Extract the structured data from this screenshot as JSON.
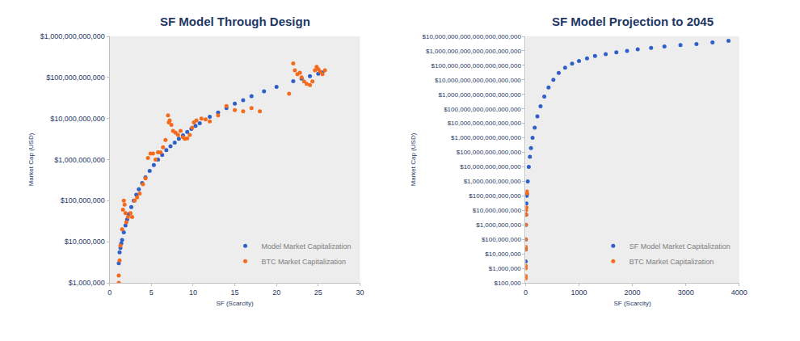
{
  "chart_data": [
    {
      "type": "scatter",
      "title": "SF Model Through Design",
      "x_label": "SF (Scarcity)",
      "y_label": "Market Cap (USD)",
      "log": "y",
      "grid": false,
      "legend": "lower right",
      "xlim": [
        0,
        30
      ],
      "xticks": [
        0,
        5,
        10,
        15,
        20,
        25,
        30
      ],
      "ylim": [
        1000000.0,
        1000000000000.0
      ],
      "yticks": [
        {
          "value": 1000000.0,
          "label": "$1,000,000"
        },
        {
          "value": 10000000.0,
          "label": "$10,000,000"
        },
        {
          "value": 100000000.0,
          "label": "$100,000,000"
        },
        {
          "value": 1000000000.0,
          "label": "$1,000,000,000"
        },
        {
          "value": 10000000000.0,
          "label": "$10,000,000,000"
        },
        {
          "value": 100000000000.0,
          "label": "$100,000,000,000"
        },
        {
          "value": 1000000000000.0,
          "label": "$1,000,000,000,000"
        }
      ],
      "series": [
        {
          "name": "Model Market Capitalization",
          "color": "#2f5fc9",
          "marker": "circle",
          "x": [
            1.1,
            1.2,
            1.3,
            1.4,
            1.5,
            1.7,
            1.9,
            2.1,
            2.3,
            2.6,
            2.9,
            3.2,
            3.5,
            3.9,
            4.3,
            4.8,
            5.3,
            5.8,
            6.3,
            6.8,
            7.3,
            7.8,
            8.3,
            8.8,
            9.3,
            9.8,
            10.3,
            10.8,
            12,
            13,
            14,
            15,
            16,
            17,
            18.5,
            20,
            22,
            23,
            24,
            25,
            25.5
          ],
          "values": [
            3000000.0,
            5500000.0,
            7100000.0,
            9100000.0,
            11000000.0,
            17000000.0,
            25000000.0,
            35000000.0,
            47000000.0,
            70000000.0,
            100000000.0,
            140000000.0,
            190000000.0,
            270000000.0,
            370000000.0,
            530000000.0,
            740000000.0,
            1000000000.0,
            1300000000.0,
            1700000000.0,
            2100000000.0,
            2600000000.0,
            3200000000.0,
            3900000000.0,
            4700000000.0,
            5600000000.0,
            6600000000.0,
            7700000000.0,
            11000000000.0,
            14000000000.0,
            18000000000.0,
            23000000000.0,
            28000000000.0,
            35000000000.0,
            46000000000.0,
            59000000000.0,
            81000000000.0,
            94000000000.0,
            108000000000.0,
            123000000000.0,
            132000000000.0
          ]
        },
        {
          "name": "BTC Market Capitalization",
          "color": "#f36b1c",
          "marker": "circle",
          "x": [
            1.1,
            1.1,
            1.2,
            1.3,
            1.5,
            1.6,
            1.7,
            1.8,
            1.9,
            2.0,
            2.2,
            2.5,
            2.7,
            3.0,
            3.3,
            3.6,
            4.0,
            4.3,
            4.6,
            4.9,
            5.2,
            5.5,
            5.8,
            6.1,
            6.4,
            6.7,
            7.0,
            7.1,
            7.2,
            7.4,
            7.6,
            7.9,
            8.2,
            8.5,
            8.8,
            9.0,
            9.3,
            9.6,
            9.9,
            10.1,
            10.4,
            11,
            11.5,
            12,
            13,
            14,
            15,
            16,
            17,
            18,
            21.5,
            22,
            22.2,
            22.5,
            22.8,
            23,
            23.3,
            23.6,
            24,
            24.3,
            24.6,
            24.8,
            25,
            25.2,
            25.5,
            25.8
          ],
          "values": [
            1500000.0,
            1000000.0,
            3500000.0,
            8000000.0,
            20000000.0,
            60000000.0,
            100000000.0,
            80000000.0,
            50000000.0,
            30000000.0,
            40000000.0,
            50000000.0,
            40000000.0,
            100000000.0,
            120000000.0,
            150000000.0,
            250000000.0,
            350000000.0,
            1100000000.0,
            1400000000.0,
            1400000000.0,
            1000000000.0,
            1500000000.0,
            1500000000.0,
            2000000000.0,
            3000000000.0,
            12000000000.0,
            8000000000.0,
            9000000000.0,
            7000000000.0,
            5000000000.0,
            4500000000.0,
            4000000000.0,
            5000000000.0,
            3500000000.0,
            3200000000.0,
            3300000000.0,
            4000000000.0,
            6000000000.0,
            8000000000.0,
            9000000000.0,
            10000000000.0,
            9500000000.0,
            8500000000.0,
            12000000000.0,
            20000000000.0,
            16000000000.0,
            15000000000.0,
            18000000000.0,
            15000000000.0,
            40000000000.0,
            220000000000.0,
            150000000000.0,
            120000000000.0,
            130000000000.0,
            100000000000.0,
            80000000000.0,
            70000000000.0,
            65000000000.0,
            80000000000.0,
            150000000000.0,
            180000000000.0,
            160000000000.0,
            140000000000.0,
            120000000000.0,
            150000000000.0
          ]
        }
      ]
    },
    {
      "type": "scatter",
      "title": "SF Model Projection to 2045",
      "x_label": "SF (Scarcity)",
      "y_label": "Market Cap (USD)",
      "log": "y",
      "grid": false,
      "legend": "lower right",
      "xlim": [
        0,
        4000
      ],
      "xticks": [
        0,
        1000,
        2000,
        3000,
        4000
      ],
      "ylim": [
        100000.0,
        1e+22
      ],
      "yticks": [
        {
          "value": 100000.0,
          "label": "$100,000"
        },
        {
          "value": 1000000.0,
          "label": "$1,000,000"
        },
        {
          "value": 10000000.0,
          "label": "$10,000,000"
        },
        {
          "value": 100000000.0,
          "label": "$100,000,000"
        },
        {
          "value": 1000000000.0,
          "label": "$1,000,000,000"
        },
        {
          "value": 10000000000.0,
          "label": "$10,000,000,000"
        },
        {
          "value": 100000000000.0,
          "label": "$100,000,000,000"
        },
        {
          "value": 1000000000000.0,
          "label": "$1,000,000,000,000"
        },
        {
          "value": 10000000000000.0,
          "label": "$10,000,000,000,000"
        },
        {
          "value": 100000000000000.0,
          "label": "$100,000,000,000,000"
        },
        {
          "value": 1000000000000000.0,
          "label": "$1,000,000,000,000,000"
        },
        {
          "value": 1e+16,
          "label": "$10,000,000,000,000,000"
        },
        {
          "value": 1e+17,
          "label": "$100,000,000,000,000,000"
        },
        {
          "value": 1e+18,
          "label": "$1,000,000,000,000,000,000"
        },
        {
          "value": 1e+19,
          "label": "$10,000,000,000,000,000,000"
        },
        {
          "value": 1e+20,
          "label": "$100,000,000,000,000,000,000"
        },
        {
          "value": 1e+21,
          "label": "$1,000,000,000,000,000,000,000"
        },
        {
          "value": 1e+22,
          "label": "$10,000,000,000,000,000,000,000"
        }
      ],
      "series": [
        {
          "name": "SF Model Market Capitalization",
          "color": "#2f5fc9",
          "marker": "circle",
          "x": [
            1.1,
            2,
            3,
            5,
            10,
            15,
            20,
            25,
            40,
            60,
            80,
            100,
            130,
            170,
            220,
            280,
            350,
            430,
            520,
            620,
            740,
            870,
            1000,
            1150,
            1300,
            1500,
            1700,
            1900,
            2100,
            2350,
            2600,
            2900,
            3200,
            3500,
            3800
          ],
          "values": [
            3000000.0,
            20000000.0,
            100000000.0,
            1000000000.0,
            5000000000.0,
            30000000000.0,
            100000000000.0,
            130000000000.0,
            1000000000000.0,
            10000000000000.0,
            50000000000000.0,
            200000000000000.0,
            1000000000000000.0,
            5000000000000000.0,
            3e+16,
            1.5e+17,
            7e+17,
            3e+18,
            1e+19,
            3e+19,
            7e+19,
            1.3e+20,
            2e+20,
            3e+20,
            4.5e+20,
            6e+20,
            8e+20,
            1e+21,
            1.3e+21,
            1.6e+21,
            2e+21,
            2.5e+21,
            3e+21,
            3.8e+21,
            5e+21
          ]
        },
        {
          "name": "BTC Market Capitalization",
          "color": "#f36b1c",
          "marker": "circle",
          "x": [
            0.5,
            0.6,
            1,
            1.1,
            1.5,
            2,
            3,
            5,
            7,
            10,
            15,
            22,
            25
          ],
          "values": [
            200000.0,
            300000.0,
            1000000.0,
            1500000.0,
            20000000.0,
            30000000.0,
            100000000.0,
            1000000000.0,
            10000000000.0,
            5000000000.0,
            16000000000.0,
            200000000000.0,
            150000000000.0
          ]
        }
      ]
    }
  ]
}
